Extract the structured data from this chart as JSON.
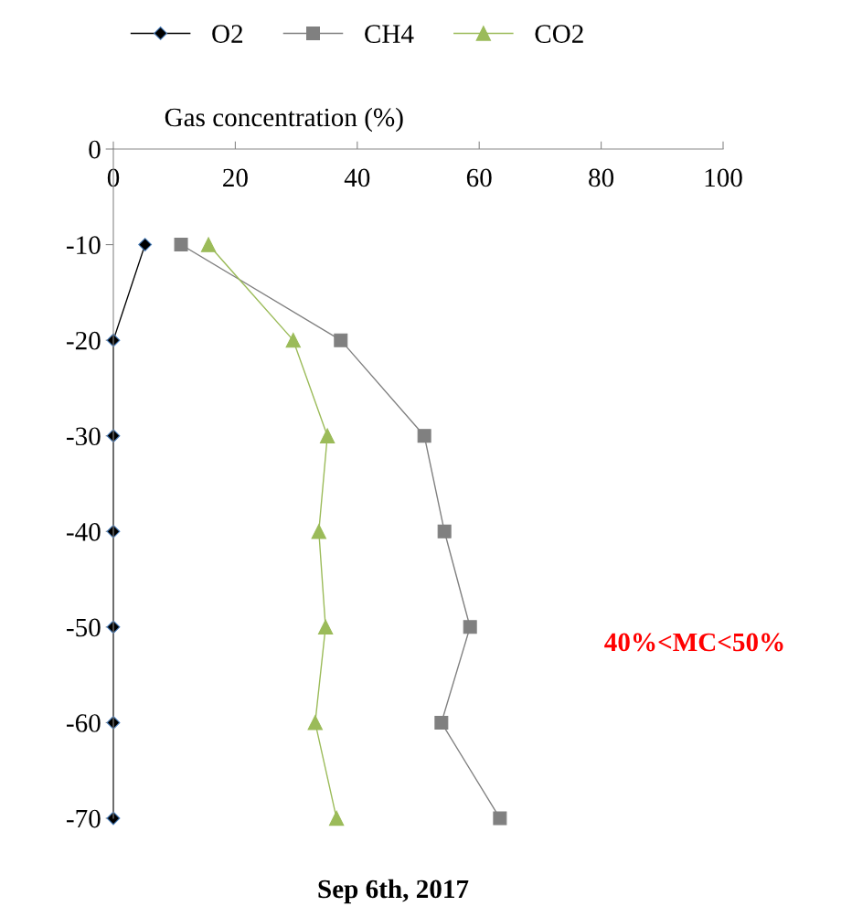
{
  "chart_data": {
    "type": "line",
    "xlabel": "Gas concentration (%)",
    "xlim": [
      0,
      100
    ],
    "xticks": [
      0,
      20,
      40,
      60,
      80,
      100
    ],
    "ylim": [
      -70,
      0
    ],
    "yticks": [
      0,
      -10,
      -20,
      -30,
      -40,
      -50,
      -60,
      -70
    ],
    "series": [
      {
        "name": "O2",
        "color": "#000000",
        "marker": "diamond",
        "x": [
          5.2,
          0,
          0,
          0,
          0,
          0,
          0
        ],
        "values": [
          -10,
          -20,
          -30,
          -40,
          -50,
          -60,
          -70
        ]
      },
      {
        "name": "CH4",
        "color": "#808080",
        "marker": "square",
        "x": [
          11.1,
          37.3,
          51,
          54.3,
          58.5,
          53.8,
          63.4
        ],
        "values": [
          -10,
          -20,
          -30,
          -40,
          -50,
          -60,
          -70
        ]
      },
      {
        "name": "CO2",
        "color": "#9bbb59",
        "marker": "triangle",
        "x": [
          15.6,
          29.5,
          35.1,
          33.7,
          34.8,
          33.1,
          36.6
        ],
        "values": [
          -10,
          -20,
          -30,
          -40,
          -50,
          -60,
          -70
        ]
      }
    ],
    "legend": "top",
    "grid": false,
    "annotations": [
      "40%<MC<50%",
      "Sep 6th, 2017"
    ]
  }
}
